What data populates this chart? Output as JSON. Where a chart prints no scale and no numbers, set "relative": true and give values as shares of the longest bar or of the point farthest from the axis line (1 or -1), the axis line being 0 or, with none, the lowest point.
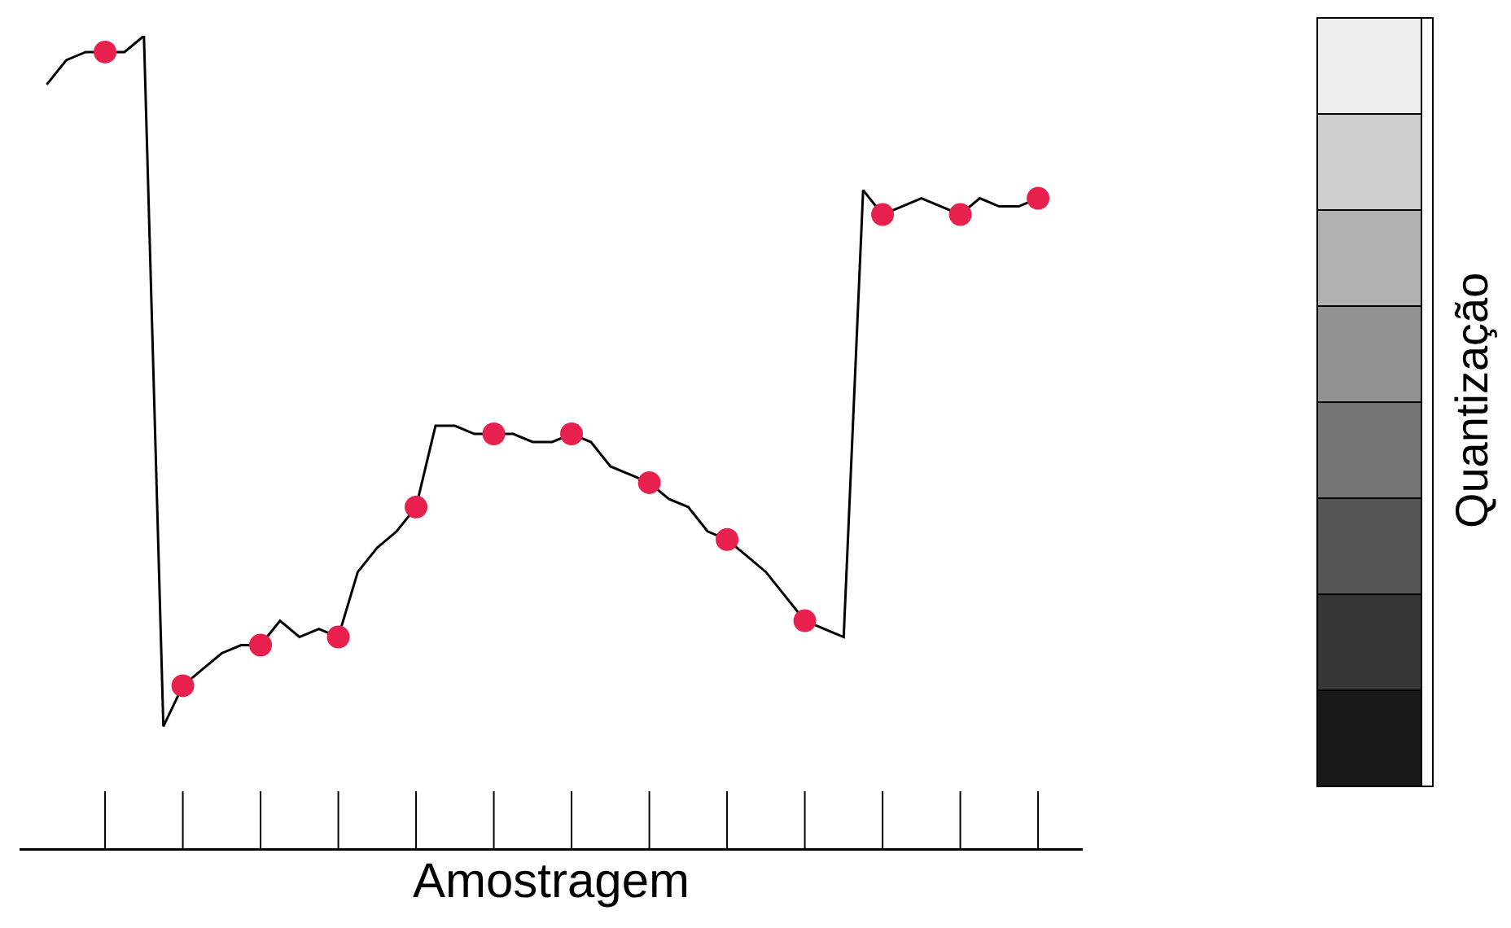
{
  "chart_data": {
    "type": "line",
    "relative": true,
    "xlabel": "Amostragem",
    "annotations": [
      "Quantização"
    ],
    "categories": [
      null,
      null,
      null,
      null,
      null,
      null,
      null,
      null,
      null,
      null,
      null,
      null,
      null,
      null,
      null,
      null,
      null,
      null,
      null,
      null,
      null,
      null,
      null,
      null,
      null,
      null,
      null,
      null,
      null,
      null,
      null,
      null,
      null,
      null,
      null,
      null,
      null,
      null,
      null,
      null,
      null,
      null,
      null,
      null,
      null,
      null,
      null,
      null,
      null,
      null,
      null,
      null
    ],
    "grid": false,
    "series": [
      {
        "color": "#000000",
        "line_style": "solid",
        "values": [
          0.94,
          0.97,
          0.98,
          0.98,
          0.98,
          1.0,
          0.15,
          0.2,
          0.22,
          0.24,
          0.25,
          0.25,
          0.28,
          0.26,
          0.27,
          0.26,
          0.34,
          0.37,
          0.39,
          0.42,
          0.52,
          0.52,
          0.51,
          0.51,
          0.51,
          0.5,
          0.5,
          0.51,
          0.5,
          0.47,
          0.46,
          0.45,
          0.43,
          0.42,
          0.39,
          0.38,
          0.36,
          0.34,
          0.31,
          0.28,
          0.27,
          0.26,
          0.81,
          0.78,
          0.79,
          0.8,
          0.79,
          0.78,
          0.8,
          0.79,
          0.79,
          0.8
        ],
        "colors": [
          null,
          null,
          null,
          "#e8204e",
          null,
          null,
          null,
          "#e8204e",
          null,
          null,
          null,
          "#e8204e",
          null,
          null,
          null,
          "#e8204e",
          null,
          null,
          null,
          "#e8204e",
          null,
          null,
          null,
          "#e8204e",
          null,
          null,
          null,
          "#e8204e",
          null,
          null,
          null,
          "#e8204e",
          null,
          null,
          null,
          "#e8204e",
          null,
          null,
          null,
          "#e8204e",
          null,
          null,
          null,
          "#e8204e",
          null,
          null,
          null,
          "#e8204e",
          null,
          null,
          null,
          "#e8204e"
        ]
      }
    ]
  }
}
